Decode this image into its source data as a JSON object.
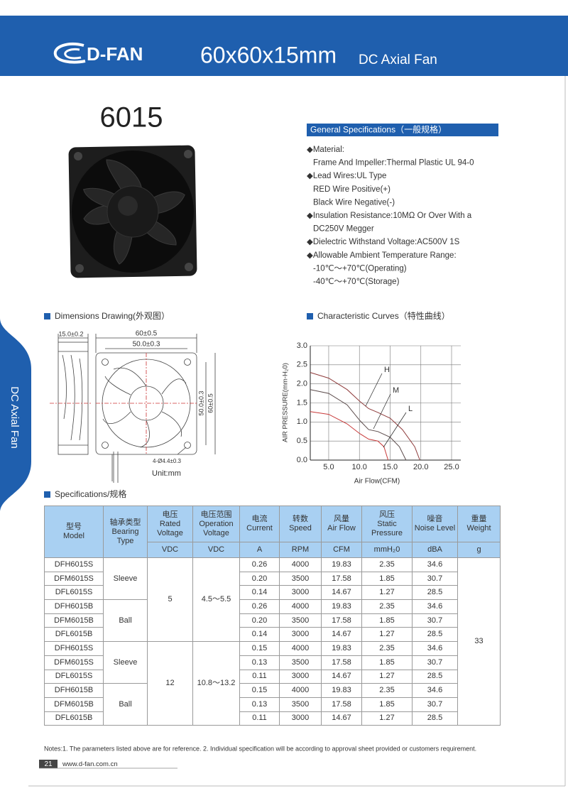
{
  "header": {
    "logo": "D-FAN",
    "title": "60x60x15mm",
    "subtitle": "DC Axial Fan"
  },
  "side_tab": "DC Axial Fan",
  "model": "6015",
  "general_specs": {
    "title": "General Specifications（一般规格）",
    "items": [
      {
        "head": "◆Material:",
        "sub": [
          "Frame And Impeller:Thermal Plastic UL 94-0"
        ]
      },
      {
        "head": "◆Lead Wires:UL Type",
        "sub": [
          "RED Wire Positive(+)",
          "Black Wire Negative(-)"
        ]
      },
      {
        "head": "◆Insulation Resistance:10MΩ  Or Over With a",
        "sub": [
          "DC250V Megger"
        ]
      },
      {
        "head": "◆Dielectric Withstand Voltage:AC500V 1S",
        "sub": []
      },
      {
        "head": "◆Allowable Ambient Temperature Range:",
        "sub": [
          "-10℃～+70℃(Operating)",
          "-40℃～+70℃(Storage)"
        ]
      }
    ]
  },
  "dimensions": {
    "title": "Dimensions Drawing(外观图）",
    "thickness": "15.0±0.2",
    "width_outer": "60±0.5",
    "width_holes": "50.0±0.3",
    "height_holes": "50.0±0.3",
    "height_outer": "60±0.5",
    "holes": "4-Ø4.4±0.3",
    "unit": "Unit:mm"
  },
  "curves": {
    "type": "line",
    "title": "Characteristic Curves（特性曲线）",
    "y_label": "AIR PRESSURE(mm-H₂0)",
    "x_label": "Air Flow(CFM)",
    "xlim": [
      2,
      26.5
    ],
    "ylim": [
      0,
      3
    ],
    "xticks": [
      {
        "value": 5,
        "label": "5.0"
      },
      {
        "value": 10,
        "label": "10.0"
      },
      {
        "value": 15,
        "label": "15.0"
      },
      {
        "value": 20,
        "label": "20.0"
      },
      {
        "value": 25,
        "label": "25.0"
      }
    ],
    "yticks": [
      {
        "value": 0,
        "label": "0.0"
      },
      0.5,
      {
        "value": 1,
        "label": "1.0"
      },
      1.5,
      {
        "value": 2,
        "label": "2.0"
      },
      2.5,
      {
        "value": 3,
        "label": "3.0"
      }
    ],
    "grid": true,
    "series": [
      {
        "name": "H",
        "color": "#8e3b3b",
        "x": [
          2,
          5,
          8,
          10,
          11.5,
          13,
          15,
          17,
          19,
          19.83
        ],
        "values": [
          2.3,
          2.15,
          1.85,
          1.55,
          1.35,
          1.25,
          1.1,
          0.8,
          0.35,
          0
        ]
      },
      {
        "name": "M",
        "color": "#5a4a4a",
        "x": [
          2,
          5,
          8,
          10,
          11.5,
          13,
          15,
          16.5,
          17.58
        ],
        "values": [
          1.85,
          1.75,
          1.45,
          1.05,
          0.8,
          0.75,
          0.6,
          0.35,
          0
        ]
      },
      {
        "name": "L",
        "color": "#c83a3a",
        "x": [
          2,
          5,
          8,
          10,
          11.5,
          13,
          14,
          14.67
        ],
        "values": [
          1.27,
          1.2,
          0.95,
          0.7,
          0.55,
          0.5,
          0.35,
          0
        ]
      }
    ]
  },
  "specs": {
    "title": "Specifications/规格",
    "columns": [
      {
        "zh": "型号",
        "en": "Model"
      },
      {
        "zh": "轴承类型",
        "en": "Bearing Type"
      },
      {
        "zh": "电压",
        "en": "Rated Voltage",
        "unit": "VDC"
      },
      {
        "zh": "电压范围",
        "en": "Operation Voltage",
        "unit": "VDC"
      },
      {
        "zh": "电流",
        "en": "Current",
        "unit": "A"
      },
      {
        "zh": "转数",
        "en": "Speed",
        "unit": "RPM"
      },
      {
        "zh": "风量",
        "en": "Air Flow",
        "unit": "CFM"
      },
      {
        "zh": "风压",
        "en": "Static Pressure",
        "unit": "mmH₂0"
      },
      {
        "zh": "噪音",
        "en": "Noise Level",
        "unit": "dBA"
      },
      {
        "zh": "重量",
        "en": "Weight",
        "unit": "g"
      }
    ],
    "weight": "33",
    "voltage_groups": [
      {
        "rated": "5",
        "operation": "4.5～5.5",
        "bearing_groups": [
          {
            "bearing": "Sleeve",
            "rows": [
              [
                "DFH6015S",
                "0.26",
                "4000",
                "19.83",
                "2.35",
                "34.6"
              ],
              [
                "DFM6015S",
                "0.20",
                "3500",
                "17.58",
                "1.85",
                "30.7"
              ],
              [
                "DFL6015S",
                "0.14",
                "3000",
                "14.67",
                "1.27",
                "28.5"
              ]
            ]
          },
          {
            "bearing": "Ball",
            "rows": [
              [
                "DFH6015B",
                "0.26",
                "4000",
                "19.83",
                "2.35",
                "34.6"
              ],
              [
                "DFM6015B",
                "0.20",
                "3500",
                "17.58",
                "1.85",
                "30.7"
              ],
              [
                "DFL6015B",
                "0.14",
                "3000",
                "14.67",
                "1.27",
                "28.5"
              ]
            ]
          }
        ]
      },
      {
        "rated": "12",
        "operation": "10.8～13.2",
        "bearing_groups": [
          {
            "bearing": "Sleeve",
            "rows": [
              [
                "DFH6015S",
                "0.15",
                "4000",
                "19.83",
                "2.35",
                "34.6"
              ],
              [
                "DFM6015S",
                "0.13",
                "3500",
                "17.58",
                "1.85",
                "30.7"
              ],
              [
                "DFL6015S",
                "0.11",
                "3000",
                "14.67",
                "1.27",
                "28.5"
              ]
            ]
          },
          {
            "bearing": "Ball",
            "rows": [
              [
                "DFH6015B",
                "0.15",
                "4000",
                "19.83",
                "2.35",
                "34.6"
              ],
              [
                "DFM6015B",
                "0.13",
                "3500",
                "17.58",
                "1.85",
                "30.7"
              ],
              [
                "DFL6015B",
                "0.11",
                "3000",
                "14.67",
                "1.27",
                "28.5"
              ]
            ]
          }
        ]
      }
    ]
  },
  "notes": "Notes:1. The parameters listed above are for reference.   2. Individual specification will be according to approval sheet provided or customers requirement.",
  "footer": {
    "page": "21",
    "url": "www.d-fan.com.cn"
  }
}
